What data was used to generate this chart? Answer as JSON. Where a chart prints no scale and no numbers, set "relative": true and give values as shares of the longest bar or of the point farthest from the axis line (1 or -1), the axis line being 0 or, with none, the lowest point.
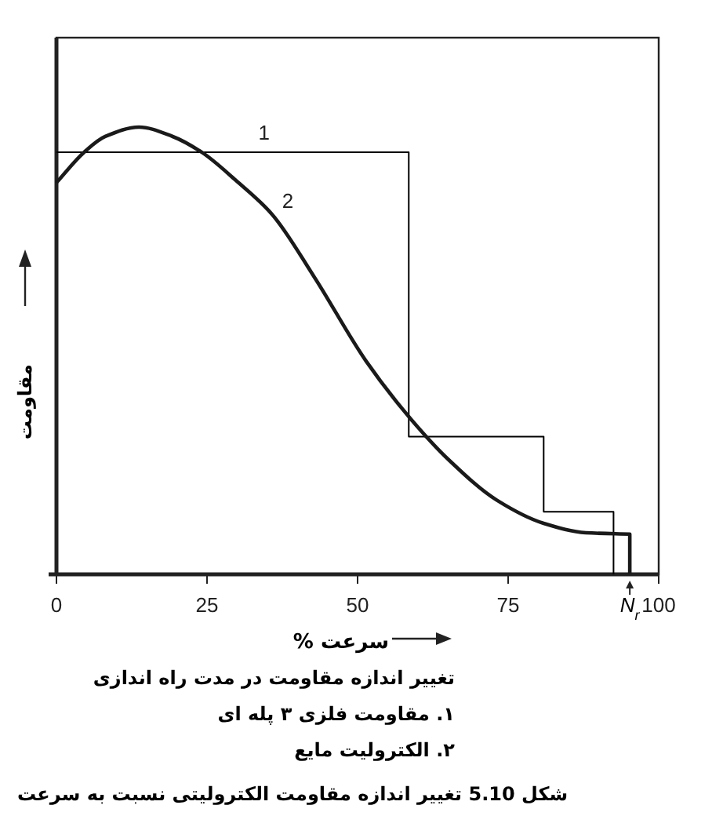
{
  "chart_data": {
    "type": "line",
    "relative": true,
    "title": "شکل 5.10   تغییر اندازه مقاومت الکترولیتی نسبت به سرعت",
    "xlabel": "سرعت %",
    "ylabel": "مقاومت",
    "xlim": [
      0,
      100
    ],
    "xticks": [
      0,
      25,
      50,
      75,
      100,
      {
        "value": 95.2,
        "label": "N$_{r}$"
      }
    ],
    "annotations": [
      "تغییر اندازه مقاومت در مدت راه اندازی",
      "۱. مقاومت فلزی ۳ پله ای",
      "۲. الکترولیت مایع"
    ],
    "series": [
      {
        "name": "1",
        "color": "#000000",
        "x": [
          0,
          58.5,
          58.5,
          80.9,
          80.9,
          92.5,
          92.5
        ],
        "values": [
          0.944,
          0.944,
          0.308,
          0.308,
          0.14,
          0.14,
          0
        ]
      },
      {
        "name": "2",
        "color": "#1a1a1a",
        "x": [
          0,
          4.6,
          8.1,
          13.7,
          19.3,
          24.1,
          29.7,
          35.8,
          42.8,
          51.4,
          58.8,
          65.3,
          73.1,
          80.9,
          87.9,
          95.2,
          95.2
        ],
        "values": [
          0.876,
          0.944,
          0.979,
          1,
          0.979,
          0.944,
          0.882,
          0.805,
          0.665,
          0.477,
          0.348,
          0.254,
          0.166,
          0.114,
          0.093,
          0.09,
          0
        ]
      }
    ]
  }
}
